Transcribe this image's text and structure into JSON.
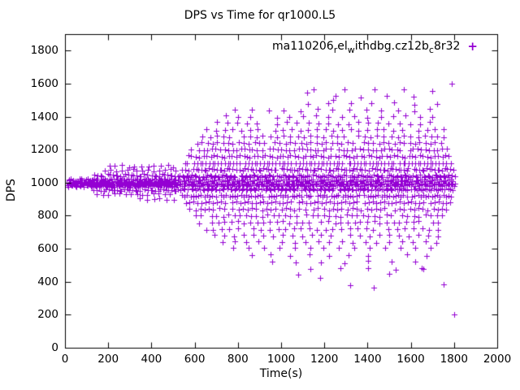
{
  "title": "DPS vs Time for qr1000.L5",
  "legend": {
    "label": "ma110206_rel_withdbg.cz12b_c8r32",
    "segments": [
      {
        "text": "ma110206",
        "sub": false
      },
      {
        "text": "r",
        "sub": true
      },
      {
        "text": "el",
        "sub": false
      },
      {
        "text": "w",
        "sub": true
      },
      {
        "text": "ithdbg.cz12b",
        "sub": false
      },
      {
        "text": "c",
        "sub": true
      },
      {
        "text": "8r32",
        "sub": false
      }
    ],
    "marker_glyph": "+"
  },
  "style": {
    "marker_color": "#9400d3",
    "axis_color": "#000000",
    "background": "#ffffff"
  },
  "chart_data": {
    "type": "scatter",
    "title": "DPS vs Time for qr1000.L5",
    "xlabel": "Time(s)",
    "ylabel": "DPS",
    "xlim": [
      0,
      2000
    ],
    "ylim": [
      0,
      1900
    ],
    "xticks": [
      0,
      200,
      400,
      600,
      800,
      1000,
      1200,
      1400,
      1600,
      1800,
      2000
    ],
    "yticks": [
      0,
      200,
      400,
      600,
      800,
      1000,
      1200,
      1400,
      1600,
      1800
    ],
    "grid": false,
    "legend_position": "top-right-inside",
    "series_name": "ma110206_rel_withdbg.cz12b_c8r32",
    "marker": "plus",
    "runs_encoding": "each run is [dps_level, time_start, time_end, time_step] expanded to points",
    "runs": [
      [
        1000,
        10,
        520,
        6
      ],
      [
        990,
        12,
        520,
        8
      ],
      [
        1010,
        14,
        520,
        9
      ],
      [
        980,
        16,
        518,
        10
      ],
      [
        1020,
        18,
        518,
        11
      ],
      [
        955,
        130,
        520,
        12
      ],
      [
        1045,
        136,
        520,
        12
      ],
      [
        930,
        150,
        515,
        26
      ],
      [
        1075,
        160,
        515,
        25
      ],
      [
        1100,
        205,
        515,
        30
      ],
      [
        900,
        345,
        520,
        32
      ],
      [
        1000,
        526,
        1805,
        7
      ],
      [
        985,
        528,
        1800,
        9
      ],
      [
        1015,
        530,
        1800,
        9
      ],
      [
        960,
        525,
        1800,
        10
      ],
      [
        1040,
        530,
        1800,
        10
      ],
      [
        920,
        540,
        1795,
        13
      ],
      [
        1080,
        545,
        1795,
        12
      ],
      [
        880,
        560,
        1785,
        18
      ],
      [
        1120,
        555,
        1790,
        14
      ],
      [
        1160,
        570,
        1785,
        17
      ],
      [
        840,
        580,
        1775,
        22
      ],
      [
        1200,
        585,
        1780,
        19
      ],
      [
        800,
        600,
        1765,
        26
      ],
      [
        1240,
        610,
        1780,
        24
      ],
      [
        760,
        620,
        1755,
        30
      ],
      [
        1280,
        640,
        1775,
        31
      ],
      [
        720,
        650,
        1745,
        37
      ],
      [
        1320,
        660,
        1765,
        39
      ],
      [
        680,
        690,
        1735,
        45
      ],
      [
        1360,
        700,
        1755,
        47
      ],
      [
        640,
        730,
        1725,
        55
      ],
      [
        1400,
        740,
        1745,
        60
      ],
      [
        600,
        780,
        1705,
        70
      ],
      [
        1440,
        790,
        1735,
        75
      ],
      [
        560,
        860,
        1695,
        90
      ],
      [
        1480,
        1120,
        1725,
        100
      ],
      [
        520,
        960,
        1685,
        110
      ],
      [
        1520,
        1130,
        1715,
        120
      ],
      [
        480,
        1140,
        1665,
        130
      ],
      [
        1560,
        1150,
        1705,
        140
      ]
    ],
    "extra_points": [
      [
        1800,
        200
      ],
      [
        1750,
        385
      ],
      [
        1320,
        380
      ],
      [
        1430,
        365
      ],
      [
        1180,
        425
      ],
      [
        1080,
        445
      ],
      [
        1500,
        450
      ],
      [
        1650,
        480
      ],
      [
        1790,
        1600
      ],
      [
        1700,
        1555
      ],
      [
        1120,
        1545
      ],
      [
        1240,
        1500
      ]
    ]
  }
}
